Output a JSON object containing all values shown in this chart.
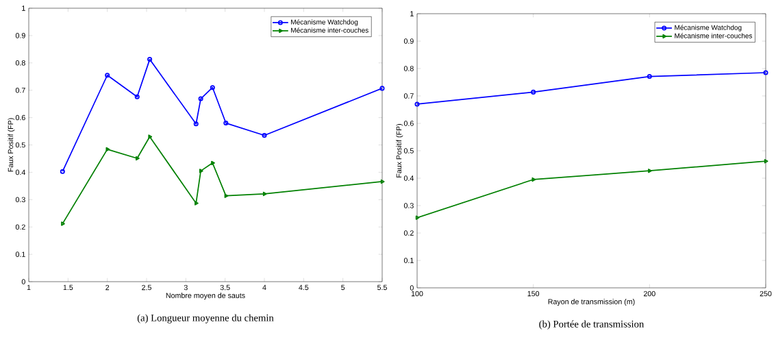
{
  "chart_data": [
    {
      "type": "line",
      "title": "(a)  Longueur moyenne du chemin",
      "xlabel": "Nombre moyen de sauts",
      "ylabel": "Faux Positif (FP)",
      "x": [
        1.43,
        2.0,
        2.38,
        2.54,
        3.13,
        3.19,
        3.34,
        3.51,
        4.0,
        5.5
      ],
      "series": [
        {
          "name": "Mécanisme Watchdog",
          "color": "#0000ff",
          "marker": "circle",
          "values": [
            0.403,
            0.755,
            0.676,
            0.813,
            0.577,
            0.669,
            0.71,
            0.58,
            0.535,
            0.707
          ]
        },
        {
          "name": "Mécanisme inter-couches",
          "color": "#008000",
          "marker": "triangle",
          "values": [
            0.212,
            0.484,
            0.451,
            0.53,
            0.287,
            0.405,
            0.434,
            0.314,
            0.321,
            0.366
          ]
        }
      ],
      "xlim": [
        1,
        5.5
      ],
      "xticks": [
        1,
        1.5,
        2,
        2.5,
        3,
        3.5,
        4,
        4.5,
        5,
        5.5
      ],
      "ylim": [
        0,
        1
      ],
      "yticks": [
        0,
        0.1,
        0.2,
        0.3,
        0.4,
        0.5,
        0.6,
        0.7,
        0.8,
        0.9,
        1
      ],
      "legend": "top right",
      "grid": false
    },
    {
      "type": "line",
      "title": "(b)  Portée de transmission",
      "xlabel": "Rayon de transmission (m)",
      "ylabel": "Faux Positif (FP)",
      "x": [
        100,
        150,
        200,
        250
      ],
      "series": [
        {
          "name": "Mécanisme Watchdog",
          "color": "#0000ff",
          "marker": "circle",
          "values": [
            0.67,
            0.714,
            0.771,
            0.785
          ]
        },
        {
          "name": "Mécanisme inter-couches",
          "color": "#008000",
          "marker": "triangle",
          "values": [
            0.256,
            0.395,
            0.427,
            0.462
          ]
        }
      ],
      "xlim": [
        100,
        250
      ],
      "xticks": [
        100,
        150,
        200,
        250
      ],
      "ylim": [
        0,
        1
      ],
      "yticks": [
        0,
        0.1,
        0.2,
        0.3,
        0.4,
        0.5,
        0.6,
        0.7,
        0.8,
        0.9,
        1
      ],
      "legend": "top right",
      "grid": false
    }
  ]
}
